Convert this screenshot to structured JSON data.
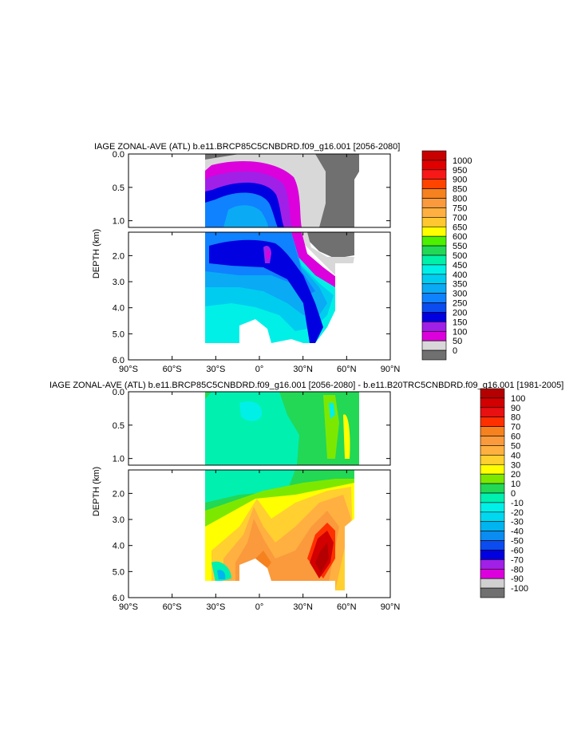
{
  "chart_data": [
    {
      "type": "heatmap",
      "title": "IAGE ZONAL-AVE (ATL) b.e11.BRCP85C5CNBDRD.f09_g16.001 [2056-2080]",
      "ylabel": "DEPTH (km)",
      "x_tick_labels": [
        "90°S",
        "60°S",
        "30°S",
        "0°",
        "30°N",
        "60°N",
        "90°N"
      ],
      "x_tick_values": [
        -90,
        -60,
        -30,
        0,
        30,
        60,
        90
      ],
      "xlim": [
        -90,
        90
      ],
      "upper_panel": {
        "ylim": [
          0,
          1.1
        ],
        "tick_labels": [
          "0.0",
          "0.5",
          "1.0"
        ],
        "tick_values": [
          0,
          0.5,
          1.0
        ]
      },
      "lower_panel": {
        "ylim": [
          1.1,
          6.0
        ],
        "tick_labels": [
          "2.0",
          "3.0",
          "4.0",
          "5.0",
          "6.0"
        ],
        "tick_values": [
          2.0,
          3.0,
          4.0,
          5.0,
          6.0
        ]
      },
      "colorbar": {
        "labels": [
          "1000",
          "950",
          "900",
          "850",
          "800",
          "750",
          "700",
          "650",
          "600",
          "550",
          "500",
          "450",
          "400",
          "350",
          "300",
          "250",
          "200",
          "150",
          "100",
          "50",
          "0"
        ],
        "colors": [
          "#c80000",
          "#e00000",
          "#f81818",
          "#ff4400",
          "#f5821f",
          "#fa9a3c",
          "#ffb040",
          "#ffc830",
          "#ffff00",
          "#4cf000",
          "#22d855",
          "#00f0a8",
          "#00f0e8",
          "#00ccf0",
          "#0aaaf5",
          "#0f82ff",
          "#0a4cf0",
          "#0000e0",
          "#a020e8",
          "#dc00dc",
          "#d8d8d8",
          "#707070"
        ]
      }
    },
    {
      "type": "heatmap",
      "title": "IAGE ZONAL-AVE (ATL) b.e11.BRCP85C5CNBDRD.f09_g16.001 [2056-2080] - b.e11.B20TRC5CNBDRD.f09_g16.001 [1981-2005]",
      "ylabel": "DEPTH (km)",
      "x_tick_labels": [
        "90°S",
        "60°S",
        "30°S",
        "0°",
        "30°N",
        "60°N",
        "90°N"
      ],
      "x_tick_values": [
        -90,
        -60,
        -30,
        0,
        30,
        60,
        90
      ],
      "xlim": [
        -90,
        90
      ],
      "upper_panel": {
        "ylim": [
          0,
          1.1
        ],
        "tick_labels": [
          "0.0",
          "0.5",
          "1.0"
        ],
        "tick_values": [
          0,
          0.5,
          1.0
        ]
      },
      "lower_panel": {
        "ylim": [
          1.1,
          6.0
        ],
        "tick_labels": [
          "2.0",
          "3.0",
          "4.0",
          "5.0",
          "6.0"
        ],
        "tick_values": [
          2.0,
          3.0,
          4.0,
          5.0,
          6.0
        ]
      },
      "colorbar": {
        "labels": [
          "100",
          "90",
          "80",
          "70",
          "60",
          "50",
          "40",
          "30",
          "20",
          "10",
          "0",
          "-10",
          "-20",
          "-30",
          "-40",
          "-50",
          "-60",
          "-70",
          "-80",
          "-90",
          "-100"
        ],
        "colors": [
          "#b40000",
          "#d20000",
          "#e81010",
          "#ff3000",
          "#f5821f",
          "#fa9a3c",
          "#ffb040",
          "#ffd030",
          "#ffff00",
          "#7ce800",
          "#22d855",
          "#00f0b0",
          "#00f0e8",
          "#00d8f0",
          "#00b4f0",
          "#0a8cf0",
          "#0a4cf0",
          "#0000e0",
          "#a020e8",
          "#dc00dc",
          "#d0d0d0",
          "#707070"
        ]
      }
    }
  ]
}
